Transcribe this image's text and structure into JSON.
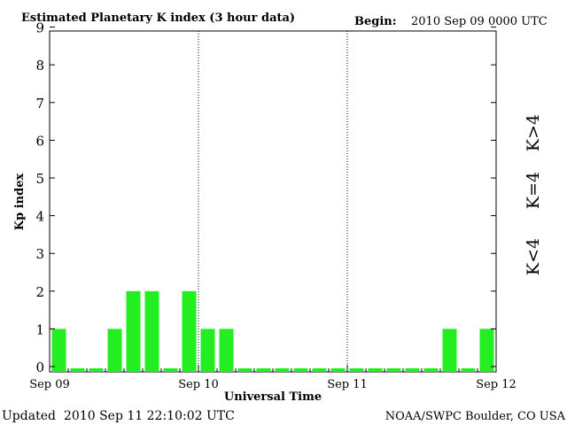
{
  "header": {
    "title": "Estimated Planetary K index (3 hour data)",
    "begin_label": "Begin:",
    "begin_value": "2010 Sep 09 0000 UTC"
  },
  "footer": {
    "updated_label": "Updated",
    "updated_value": "2010 Sep 11 22:10:02 UTC",
    "source": "NOAA/SWPC Boulder, CO USA"
  },
  "legend": {
    "above": "K>4",
    "equal": "K=4",
    "below": "K<4"
  },
  "colors": {
    "below": "#22ee22",
    "equal": "#ffcc00",
    "above": "#ff3300",
    "axis": "#000000"
  },
  "chart_data": {
    "type": "bar",
    "title": "Estimated Planetary K index (3 hour data)",
    "xlabel": "Universal Time",
    "ylabel": "Kp index",
    "ylim": [
      0,
      9
    ],
    "yticks": [
      "0",
      "1",
      "2",
      "3",
      "4",
      "5",
      "6",
      "7",
      "8",
      "9"
    ],
    "xticks": [
      "Sep 09",
      "Sep 10",
      "Sep 11",
      "Sep 12"
    ],
    "interval_hours": 3,
    "values": [
      1,
      0,
      0,
      1,
      2,
      2,
      0,
      2,
      1,
      1,
      0,
      0,
      0,
      0,
      0,
      0,
      0,
      0,
      0,
      0,
      0,
      1,
      0,
      1
    ],
    "grid": "vertical day separators (dotted)"
  }
}
